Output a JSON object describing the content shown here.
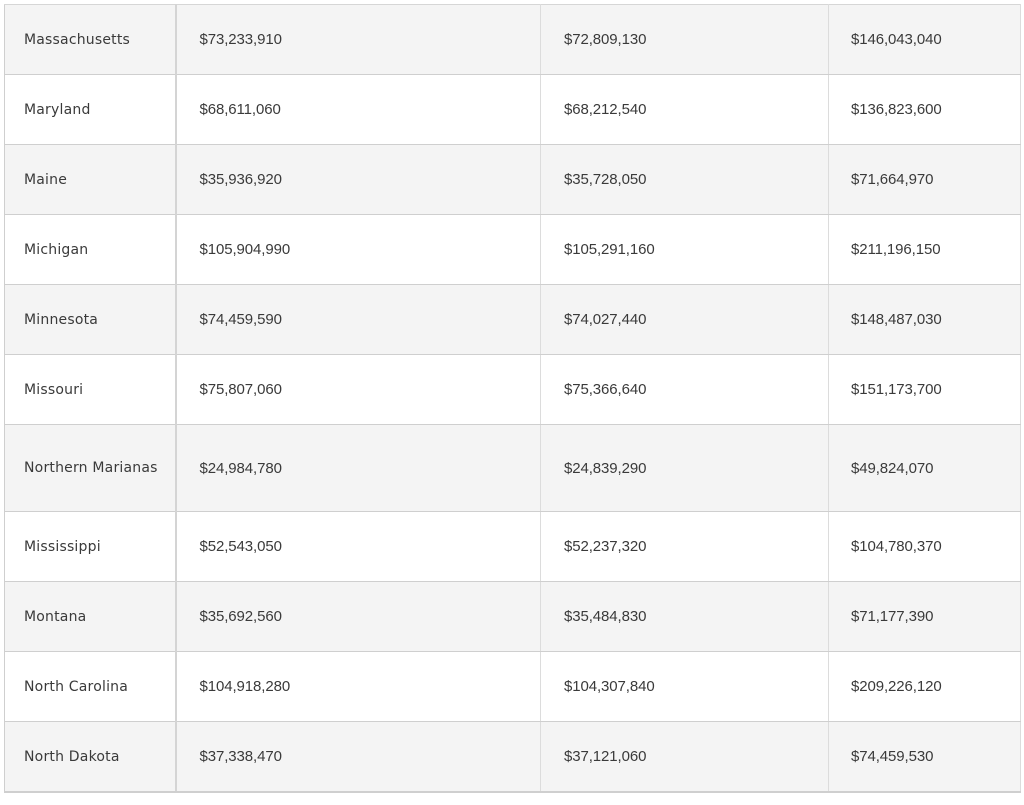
{
  "rows": [
    {
      "state": "Massachusetts",
      "col2": "$73,233,910",
      "col3": "$72,809,130",
      "col4": "$146,043,040"
    },
    {
      "state": "Maryland",
      "col2": "$68,611,060",
      "col3": "$68,212,540",
      "col4": "$136,823,600"
    },
    {
      "state": "Maine",
      "col2": "$35,936,920",
      "col3": "$35,728,050",
      "col4": "$71,664,970"
    },
    {
      "state": "Michigan",
      "col2": "$105,904,990",
      "col3": "$105,291,160",
      "col4": "$211,196,150"
    },
    {
      "state": "Minnesota",
      "col2": "$74,459,590",
      "col3": "$74,027,440",
      "col4": "$148,487,030"
    },
    {
      "state": "Missouri",
      "col2": "$75,807,060",
      "col3": "$75,366,640",
      "col4": "$151,173,700"
    },
    {
      "state": "Northern Marianas",
      "col2": "$24,984,780",
      "col3": "$24,839,290",
      "col4": "$49,824,070"
    },
    {
      "state": "Mississippi",
      "col2": "$52,543,050",
      "col3": "$52,237,320",
      "col4": "$104,780,370"
    },
    {
      "state": "Montana",
      "col2": "$35,692,560",
      "col3": "$35,484,830",
      "col4": "$71,177,390"
    },
    {
      "state": "North Carolina",
      "col2": "$104,918,280",
      "col3": "$104,307,840",
      "col4": "$209,226,120"
    },
    {
      "state": "North Dakota",
      "col2": "$37,338,470",
      "col3": "$37,121,060",
      "col4": "$74,459,530"
    }
  ]
}
